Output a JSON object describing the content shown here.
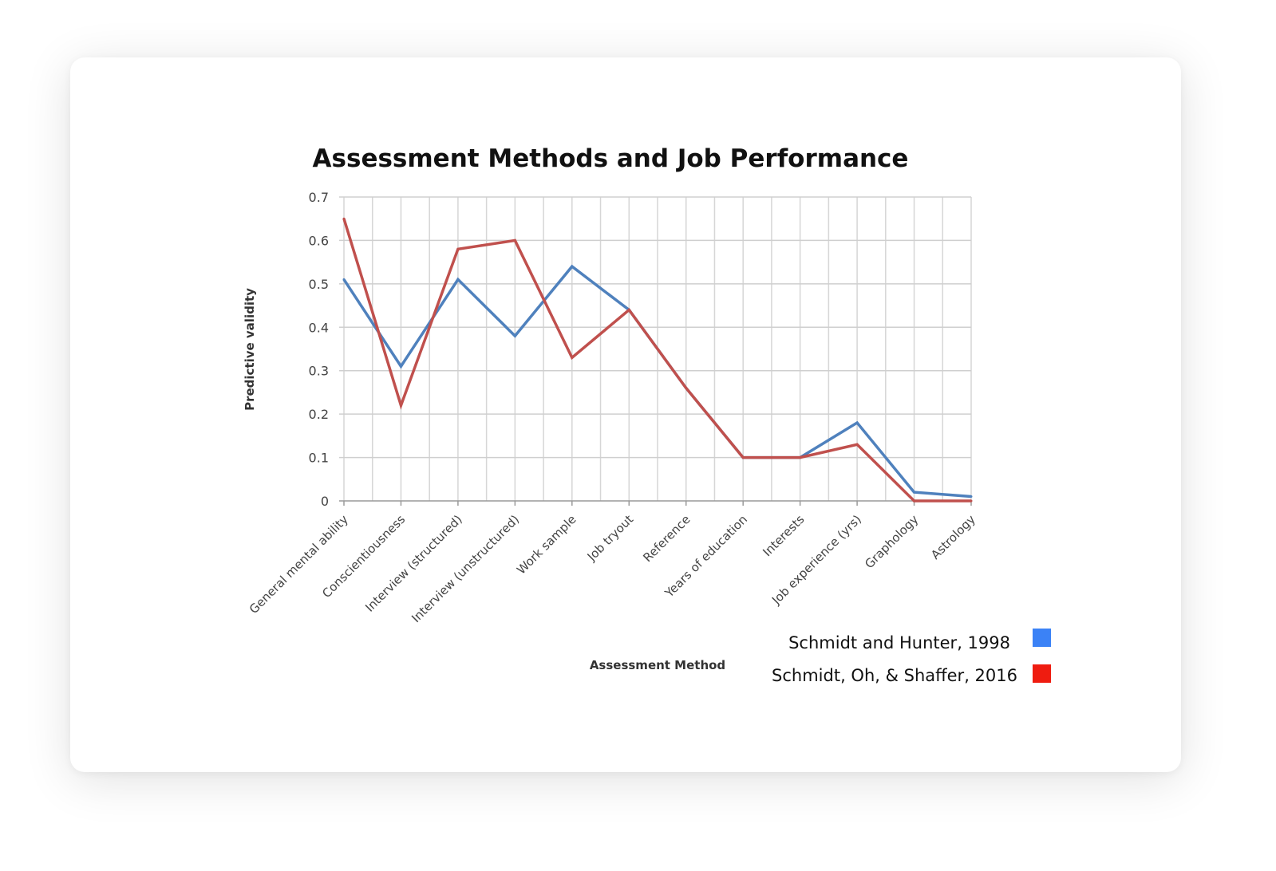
{
  "chart_data": {
    "type": "line",
    "title": "Assessment Methods and Job Performance",
    "xlabel": "Assessment Method",
    "ylabel": "Predictive validity",
    "ylim": [
      0,
      0.7
    ],
    "yticks": [
      "0",
      "0.1",
      "0.2",
      "0.3",
      "0.4",
      "0.5",
      "0.6",
      "0.7"
    ],
    "grid": true,
    "legend_position": "bottom-right",
    "categories": [
      "General mental ability",
      "Conscientiousness",
      "Interview (structured)",
      "Interview (unstructured)",
      "Work sample",
      "Job tryout",
      "Reference",
      "Years of education",
      "Interests",
      "Job experience (yrs)",
      "Graphology",
      "Astrology"
    ],
    "series": [
      {
        "name": "Schmidt and Hunter, 1998",
        "line_color": "#4f81bd",
        "legend_color": "#3b82f6",
        "values": [
          0.51,
          0.31,
          0.51,
          0.38,
          0.54,
          0.44,
          0.26,
          0.1,
          0.1,
          0.18,
          0.02,
          0.01
        ]
      },
      {
        "name": "Schmidt, Oh, & Shaffer, 2016",
        "line_color": "#c0504d",
        "legend_color": "#ef1c10",
        "values": [
          0.65,
          0.22,
          0.58,
          0.6,
          0.33,
          0.44,
          0.26,
          0.1,
          0.1,
          0.13,
          0.0,
          0.0
        ]
      }
    ]
  }
}
